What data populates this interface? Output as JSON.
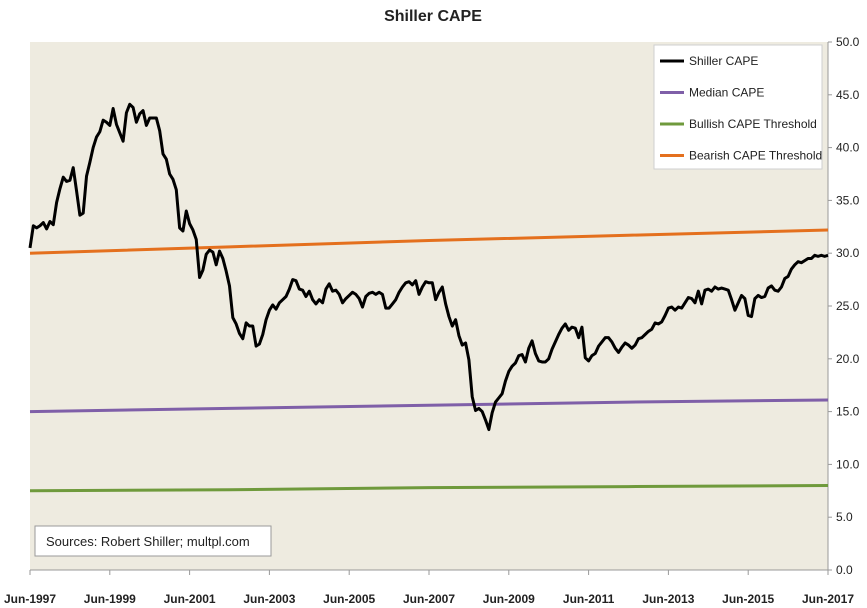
{
  "chart_data": {
    "type": "line",
    "title": "Shiller CAPE",
    "ylim": [
      0,
      50
    ],
    "yticks": [
      "0.0",
      "5.0",
      "10.0",
      "15.0",
      "20.0",
      "25.0",
      "30.0",
      "35.0",
      "40.0",
      "45.0",
      "50.0"
    ],
    "xticks": [
      "Jun-1997",
      "Jun-1999",
      "Jun-2001",
      "Jun-2003",
      "Jun-2005",
      "Jun-2007",
      "Jun-2009",
      "Jun-2011",
      "Jun-2013",
      "Jun-2015",
      "Jun-2017"
    ],
    "x_range": [
      "1997-06",
      "2017-06"
    ],
    "grid": false,
    "legend_position": "top-right",
    "source_note": "Sources: Robert Shiller; multpl.com",
    "colors": {
      "plot_background": "#eeebe0",
      "shiller": "#000000",
      "median": "#7f5fa8",
      "bullish": "#6f9a3c",
      "bearish": "#e4701e"
    },
    "series": [
      {
        "name": "Shiller CAPE",
        "color_key": "shiller",
        "points": [
          [
            "1997-06",
            30.5
          ],
          [
            "1997-07",
            32.6
          ],
          [
            "1997-08",
            32.4
          ],
          [
            "1997-09",
            32.6
          ],
          [
            "1997-10",
            32.9
          ],
          [
            "1997-11",
            32.3
          ],
          [
            "1997-12",
            33.0
          ],
          [
            "1998-01",
            32.7
          ],
          [
            "1998-02",
            34.8
          ],
          [
            "1998-03",
            36.1
          ],
          [
            "1998-04",
            37.2
          ],
          [
            "1998-05",
            36.8
          ],
          [
            "1998-06",
            36.9
          ],
          [
            "1998-07",
            38.1
          ],
          [
            "1998-08",
            35.9
          ],
          [
            "1998-09",
            33.6
          ],
          [
            "1998-10",
            33.8
          ],
          [
            "1998-11",
            37.3
          ],
          [
            "1998-12",
            38.6
          ],
          [
            "1999-01",
            40.0
          ],
          [
            "1999-02",
            41.0
          ],
          [
            "1999-03",
            41.5
          ],
          [
            "1999-04",
            42.6
          ],
          [
            "1999-05",
            42.4
          ],
          [
            "1999-06",
            42.1
          ],
          [
            "1999-07",
            43.7
          ],
          [
            "1999-08",
            42.2
          ],
          [
            "1999-09",
            41.4
          ],
          [
            "1999-10",
            40.6
          ],
          [
            "1999-11",
            43.3
          ],
          [
            "1999-12",
            44.1
          ],
          [
            "2000-01",
            43.8
          ],
          [
            "2000-02",
            42.4
          ],
          [
            "2000-03",
            43.2
          ],
          [
            "2000-04",
            43.5
          ],
          [
            "2000-05",
            42.1
          ],
          [
            "2000-06",
            42.8
          ],
          [
            "2000-07",
            42.8
          ],
          [
            "2000-08",
            42.8
          ],
          [
            "2000-09",
            41.6
          ],
          [
            "2000-10",
            39.4
          ],
          [
            "2000-11",
            38.9
          ],
          [
            "2000-12",
            37.5
          ],
          [
            "2001-01",
            37.0
          ],
          [
            "2001-02",
            36.0
          ],
          [
            "2001-03",
            32.4
          ],
          [
            "2001-04",
            32.1
          ],
          [
            "2001-05",
            34.0
          ],
          [
            "2001-06",
            32.8
          ],
          [
            "2001-07",
            32.2
          ],
          [
            "2001-08",
            31.3
          ],
          [
            "2001-09",
            27.7
          ],
          [
            "2001-10",
            28.4
          ],
          [
            "2001-11",
            29.9
          ],
          [
            "2001-12",
            30.3
          ],
          [
            "2002-01",
            30.1
          ],
          [
            "2002-02",
            28.9
          ],
          [
            "2002-03",
            30.2
          ],
          [
            "2002-04",
            29.5
          ],
          [
            "2002-05",
            28.3
          ],
          [
            "2002-06",
            26.9
          ],
          [
            "2002-07",
            23.9
          ],
          [
            "2002-08",
            23.3
          ],
          [
            "2002-09",
            22.4
          ],
          [
            "2002-10",
            21.9
          ],
          [
            "2002-11",
            23.4
          ],
          [
            "2002-12",
            23.1
          ],
          [
            "2003-01",
            23.1
          ],
          [
            "2003-02",
            21.2
          ],
          [
            "2003-03",
            21.4
          ],
          [
            "2003-04",
            22.3
          ],
          [
            "2003-05",
            23.7
          ],
          [
            "2003-06",
            24.6
          ],
          [
            "2003-07",
            25.1
          ],
          [
            "2003-08",
            24.7
          ],
          [
            "2003-09",
            25.3
          ],
          [
            "2003-10",
            25.6
          ],
          [
            "2003-11",
            25.9
          ],
          [
            "2003-12",
            26.6
          ],
          [
            "2004-01",
            27.5
          ],
          [
            "2004-02",
            27.4
          ],
          [
            "2004-03",
            26.6
          ],
          [
            "2004-04",
            26.5
          ],
          [
            "2004-05",
            25.9
          ],
          [
            "2004-06",
            26.4
          ],
          [
            "2004-07",
            25.6
          ],
          [
            "2004-08",
            25.2
          ],
          [
            "2004-09",
            25.6
          ],
          [
            "2004-10",
            25.3
          ],
          [
            "2004-11",
            26.6
          ],
          [
            "2004-12",
            27.1
          ],
          [
            "2005-01",
            26.4
          ],
          [
            "2005-02",
            26.5
          ],
          [
            "2005-03",
            26.1
          ],
          [
            "2005-04",
            25.3
          ],
          [
            "2005-05",
            25.7
          ],
          [
            "2005-06",
            26.0
          ],
          [
            "2005-07",
            26.3
          ],
          [
            "2005-08",
            26.1
          ],
          [
            "2005-09",
            25.7
          ],
          [
            "2005-10",
            24.9
          ],
          [
            "2005-11",
            25.9
          ],
          [
            "2005-12",
            26.2
          ],
          [
            "2006-01",
            26.3
          ],
          [
            "2006-02",
            26.1
          ],
          [
            "2006-03",
            26.3
          ],
          [
            "2006-04",
            26.1
          ],
          [
            "2006-05",
            24.8
          ],
          [
            "2006-06",
            24.8
          ],
          [
            "2006-07",
            25.2
          ],
          [
            "2006-08",
            25.6
          ],
          [
            "2006-09",
            26.3
          ],
          [
            "2006-10",
            26.8
          ],
          [
            "2006-11",
            27.2
          ],
          [
            "2006-12",
            27.3
          ],
          [
            "2007-01",
            27.0
          ],
          [
            "2007-02",
            27.4
          ],
          [
            "2007-03",
            26.1
          ],
          [
            "2007-04",
            26.8
          ],
          [
            "2007-05",
            27.3
          ],
          [
            "2007-06",
            27.2
          ],
          [
            "2007-07",
            27.2
          ],
          [
            "2007-08",
            25.6
          ],
          [
            "2007-09",
            26.3
          ],
          [
            "2007-10",
            26.8
          ],
          [
            "2007-11",
            25.2
          ],
          [
            "2007-12",
            24.0
          ],
          [
            "2008-01",
            23.1
          ],
          [
            "2008-02",
            23.7
          ],
          [
            "2008-03",
            22.2
          ],
          [
            "2008-04",
            21.3
          ],
          [
            "2008-05",
            21.5
          ],
          [
            "2008-06",
            19.9
          ],
          [
            "2008-07",
            16.4
          ],
          [
            "2008-08",
            15.1
          ],
          [
            "2008-09",
            15.3
          ],
          [
            "2008-10",
            15.0
          ],
          [
            "2008-11",
            14.2
          ],
          [
            "2008-12",
            13.3
          ],
          [
            "2009-01",
            14.9
          ],
          [
            "2009-02",
            15.9
          ],
          [
            "2009-03",
            16.3
          ],
          [
            "2009-04",
            16.7
          ],
          [
            "2009-05",
            17.9
          ],
          [
            "2009-06",
            18.8
          ],
          [
            "2009-07",
            19.3
          ],
          [
            "2009-08",
            19.6
          ],
          [
            "2009-09",
            20.3
          ],
          [
            "2009-10",
            20.4
          ],
          [
            "2009-11",
            19.7
          ],
          [
            "2009-12",
            21.0
          ],
          [
            "2010-01",
            21.7
          ],
          [
            "2010-02",
            20.5
          ],
          [
            "2010-03",
            19.8
          ],
          [
            "2010-04",
            19.7
          ],
          [
            "2010-05",
            19.7
          ],
          [
            "2010-06",
            20.0
          ],
          [
            "2010-07",
            20.9
          ],
          [
            "2010-08",
            21.6
          ],
          [
            "2010-09",
            22.3
          ],
          [
            "2010-10",
            22.9
          ],
          [
            "2010-11",
            23.3
          ],
          [
            "2010-12",
            22.7
          ],
          [
            "2011-01",
            23.0
          ],
          [
            "2011-02",
            22.9
          ],
          [
            "2011-03",
            22.0
          ],
          [
            "2011-04",
            23.0
          ],
          [
            "2011-05",
            20.1
          ],
          [
            "2011-06",
            19.8
          ],
          [
            "2011-07",
            20.3
          ],
          [
            "2011-08",
            20.5
          ],
          [
            "2011-09",
            21.2
          ],
          [
            "2011-10",
            21.6
          ],
          [
            "2011-11",
            22.0
          ],
          [
            "2011-12",
            22.0
          ],
          [
            "2012-01",
            21.6
          ],
          [
            "2012-02",
            21.0
          ],
          [
            "2012-03",
            20.6
          ],
          [
            "2012-04",
            21.1
          ],
          [
            "2012-05",
            21.5
          ],
          [
            "2012-06",
            21.3
          ],
          [
            "2012-07",
            21.0
          ],
          [
            "2012-08",
            21.3
          ],
          [
            "2012-09",
            21.9
          ],
          [
            "2012-10",
            22.0
          ],
          [
            "2012-11",
            22.3
          ],
          [
            "2012-12",
            22.6
          ],
          [
            "2013-01",
            22.8
          ],
          [
            "2013-02",
            23.4
          ],
          [
            "2013-03",
            23.3
          ],
          [
            "2013-04",
            23.5
          ],
          [
            "2013-05",
            24.1
          ],
          [
            "2013-06",
            24.8
          ],
          [
            "2013-07",
            24.9
          ],
          [
            "2013-08",
            24.6
          ],
          [
            "2013-09",
            24.9
          ],
          [
            "2013-10",
            24.8
          ],
          [
            "2013-11",
            25.3
          ],
          [
            "2013-12",
            25.8
          ],
          [
            "2014-01",
            25.7
          ],
          [
            "2014-02",
            25.3
          ],
          [
            "2014-03",
            26.4
          ],
          [
            "2014-04",
            25.2
          ],
          [
            "2014-05",
            26.5
          ],
          [
            "2014-06",
            26.6
          ],
          [
            "2014-07",
            26.4
          ],
          [
            "2014-08",
            26.8
          ],
          [
            "2014-09",
            26.6
          ],
          [
            "2014-10",
            26.7
          ],
          [
            "2014-11",
            26.6
          ],
          [
            "2014-12",
            26.5
          ],
          [
            "2015-01",
            25.6
          ],
          [
            "2015-02",
            24.6
          ],
          [
            "2015-03",
            25.3
          ],
          [
            "2015-04",
            26.0
          ],
          [
            "2015-05",
            25.7
          ],
          [
            "2015-06",
            24.1
          ],
          [
            "2015-07",
            24.0
          ],
          [
            "2015-08",
            25.7
          ],
          [
            "2015-09",
            26.0
          ],
          [
            "2015-10",
            25.8
          ],
          [
            "2015-11",
            25.9
          ],
          [
            "2015-12",
            26.7
          ],
          [
            "2016-01",
            26.9
          ],
          [
            "2016-02",
            26.5
          ],
          [
            "2016-03",
            26.4
          ],
          [
            "2016-04",
            26.8
          ],
          [
            "2016-05",
            27.6
          ],
          [
            "2016-06",
            27.8
          ],
          [
            "2016-07",
            28.5
          ],
          [
            "2016-08",
            28.9
          ],
          [
            "2016-09",
            29.2
          ],
          [
            "2016-10",
            29.1
          ],
          [
            "2016-11",
            29.3
          ],
          [
            "2016-12",
            29.5
          ],
          [
            "2017-01",
            29.5
          ],
          [
            "2017-02",
            29.8
          ],
          [
            "2017-03",
            29.7
          ],
          [
            "2017-04",
            29.8
          ],
          [
            "2017-05",
            29.7
          ],
          [
            "2017-06",
            29.8
          ]
        ]
      },
      {
        "name": "Median CAPE",
        "color_key": "median",
        "points": [
          [
            "1997-06",
            15.0
          ],
          [
            "2002-06",
            15.3
          ],
          [
            "2007-06",
            15.6
          ],
          [
            "2012-06",
            15.9
          ],
          [
            "2017-06",
            16.1
          ]
        ]
      },
      {
        "name": "Bullish CAPE Threshold",
        "color_key": "bullish",
        "points": [
          [
            "1997-06",
            7.5
          ],
          [
            "2002-06",
            7.6
          ],
          [
            "2007-06",
            7.8
          ],
          [
            "2012-06",
            7.9
          ],
          [
            "2017-06",
            8.0
          ]
        ]
      },
      {
        "name": "Bearish CAPE Threshold",
        "color_key": "bearish",
        "points": [
          [
            "1997-06",
            30.0
          ],
          [
            "2002-06",
            30.6
          ],
          [
            "2007-06",
            31.2
          ],
          [
            "2012-06",
            31.7
          ],
          [
            "2017-06",
            32.2
          ]
        ]
      }
    ]
  }
}
